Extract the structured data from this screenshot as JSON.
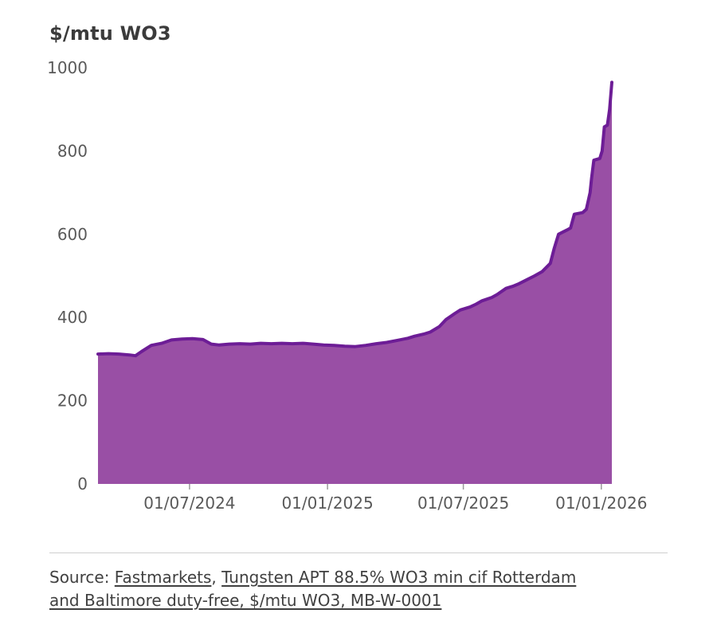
{
  "page": {
    "title": "$/mtu WO3"
  },
  "source": {
    "prefix": "Source: ",
    "link1": "Fastmarkets",
    "separator": ", ",
    "link2_line1": "Tungsten APT 88.5% WO3 min cif Rotterdam",
    "link2_line2": "and Baltimore duty-free, $/mtu WO3, MB-W-0001"
  },
  "chart_data": {
    "type": "area",
    "title": "$/mtu WO3",
    "ylabel": "$/mtu WO3",
    "ylim": [
      0,
      1000
    ],
    "y_ticks": [
      0,
      200,
      400,
      600,
      800,
      1000
    ],
    "x_range": [
      "2024-03-01",
      "2026-01-15"
    ],
    "x_ticks": [
      {
        "date": "2024-07-01",
        "label": "01/07/2024"
      },
      {
        "date": "2025-01-01",
        "label": "01/01/2025"
      },
      {
        "date": "2025-07-01",
        "label": "01/07/2025"
      },
      {
        "date": "2026-01-01",
        "label": "01/01/2026"
      }
    ],
    "legend": "off",
    "grid": "off",
    "colors": {
      "area_fill": "#994fa5",
      "line": "#6d1d96",
      "tick_text": "#595959",
      "tick_mark": "#9a9a9a"
    },
    "points": [
      {
        "date": "2024-03-01",
        "value": 312
      },
      {
        "date": "2024-03-15",
        "value": 313
      },
      {
        "date": "2024-03-29",
        "value": 312
      },
      {
        "date": "2024-04-12",
        "value": 310
      },
      {
        "date": "2024-04-20",
        "value": 308
      },
      {
        "date": "2024-04-28",
        "value": 318
      },
      {
        "date": "2024-05-11",
        "value": 333
      },
      {
        "date": "2024-05-25",
        "value": 338
      },
      {
        "date": "2024-06-07",
        "value": 346
      },
      {
        "date": "2024-06-21",
        "value": 348
      },
      {
        "date": "2024-07-05",
        "value": 349
      },
      {
        "date": "2024-07-19",
        "value": 347
      },
      {
        "date": "2024-07-30",
        "value": 336
      },
      {
        "date": "2024-08-09",
        "value": 334
      },
      {
        "date": "2024-08-23",
        "value": 336
      },
      {
        "date": "2024-09-06",
        "value": 337
      },
      {
        "date": "2024-09-20",
        "value": 336
      },
      {
        "date": "2024-10-04",
        "value": 338
      },
      {
        "date": "2024-10-18",
        "value": 337
      },
      {
        "date": "2024-11-01",
        "value": 338
      },
      {
        "date": "2024-11-15",
        "value": 337
      },
      {
        "date": "2024-11-29",
        "value": 338
      },
      {
        "date": "2024-12-13",
        "value": 336
      },
      {
        "date": "2024-12-27",
        "value": 334
      },
      {
        "date": "2025-01-10",
        "value": 333
      },
      {
        "date": "2025-01-24",
        "value": 331
      },
      {
        "date": "2025-02-07",
        "value": 330
      },
      {
        "date": "2025-02-21",
        "value": 333
      },
      {
        "date": "2025-03-07",
        "value": 337
      },
      {
        "date": "2025-03-21",
        "value": 340
      },
      {
        "date": "2025-04-04",
        "value": 345
      },
      {
        "date": "2025-04-18",
        "value": 350
      },
      {
        "date": "2025-04-27",
        "value": 355
      },
      {
        "date": "2025-05-09",
        "value": 360
      },
      {
        "date": "2025-05-18",
        "value": 365
      },
      {
        "date": "2025-05-30",
        "value": 378
      },
      {
        "date": "2025-06-08",
        "value": 395
      },
      {
        "date": "2025-06-20",
        "value": 410
      },
      {
        "date": "2025-06-27",
        "value": 418
      },
      {
        "date": "2025-07-10",
        "value": 425
      },
      {
        "date": "2025-07-18",
        "value": 432
      },
      {
        "date": "2025-07-26",
        "value": 440
      },
      {
        "date": "2025-08-08",
        "value": 448
      },
      {
        "date": "2025-08-15",
        "value": 455
      },
      {
        "date": "2025-08-27",
        "value": 470
      },
      {
        "date": "2025-09-05",
        "value": 475
      },
      {
        "date": "2025-09-12",
        "value": 480
      },
      {
        "date": "2025-09-23",
        "value": 490
      },
      {
        "date": "2025-10-04",
        "value": 500
      },
      {
        "date": "2025-10-14",
        "value": 510
      },
      {
        "date": "2025-10-25",
        "value": 530
      },
      {
        "date": "2025-10-30",
        "value": 565
      },
      {
        "date": "2025-11-05",
        "value": 600
      },
      {
        "date": "2025-11-16",
        "value": 610
      },
      {
        "date": "2025-11-21",
        "value": 615
      },
      {
        "date": "2025-11-26",
        "value": 648
      },
      {
        "date": "2025-12-07",
        "value": 652
      },
      {
        "date": "2025-12-12",
        "value": 660
      },
      {
        "date": "2025-12-17",
        "value": 700
      },
      {
        "date": "2025-12-19",
        "value": 735
      },
      {
        "date": "2025-12-22",
        "value": 778
      },
      {
        "date": "2025-12-30",
        "value": 782
      },
      {
        "date": "2026-01-02",
        "value": 800
      },
      {
        "date": "2026-01-05",
        "value": 858
      },
      {
        "date": "2026-01-09",
        "value": 862
      },
      {
        "date": "2026-01-12",
        "value": 900
      },
      {
        "date": "2026-01-15",
        "value": 965
      }
    ]
  }
}
